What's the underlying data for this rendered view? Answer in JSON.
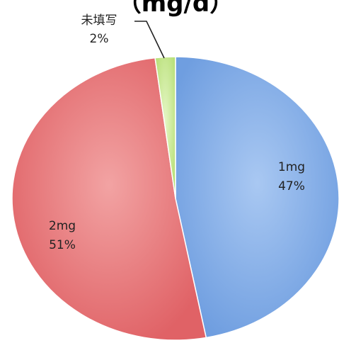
{
  "chart_data": {
    "type": "pie",
    "title": "（mg/d）",
    "start_angle_deg": 0,
    "direction": "clockwise",
    "slices": [
      {
        "label": "1mg",
        "value": 47,
        "percent_label": "47%",
        "color": "#6f9ee0"
      },
      {
        "label": "2mg",
        "value": 51,
        "percent_label": "51%",
        "color": "#e06266"
      },
      {
        "label": "未填写",
        "value": 2,
        "percent_label": "2%",
        "color": "#c5e88d"
      }
    ]
  }
}
